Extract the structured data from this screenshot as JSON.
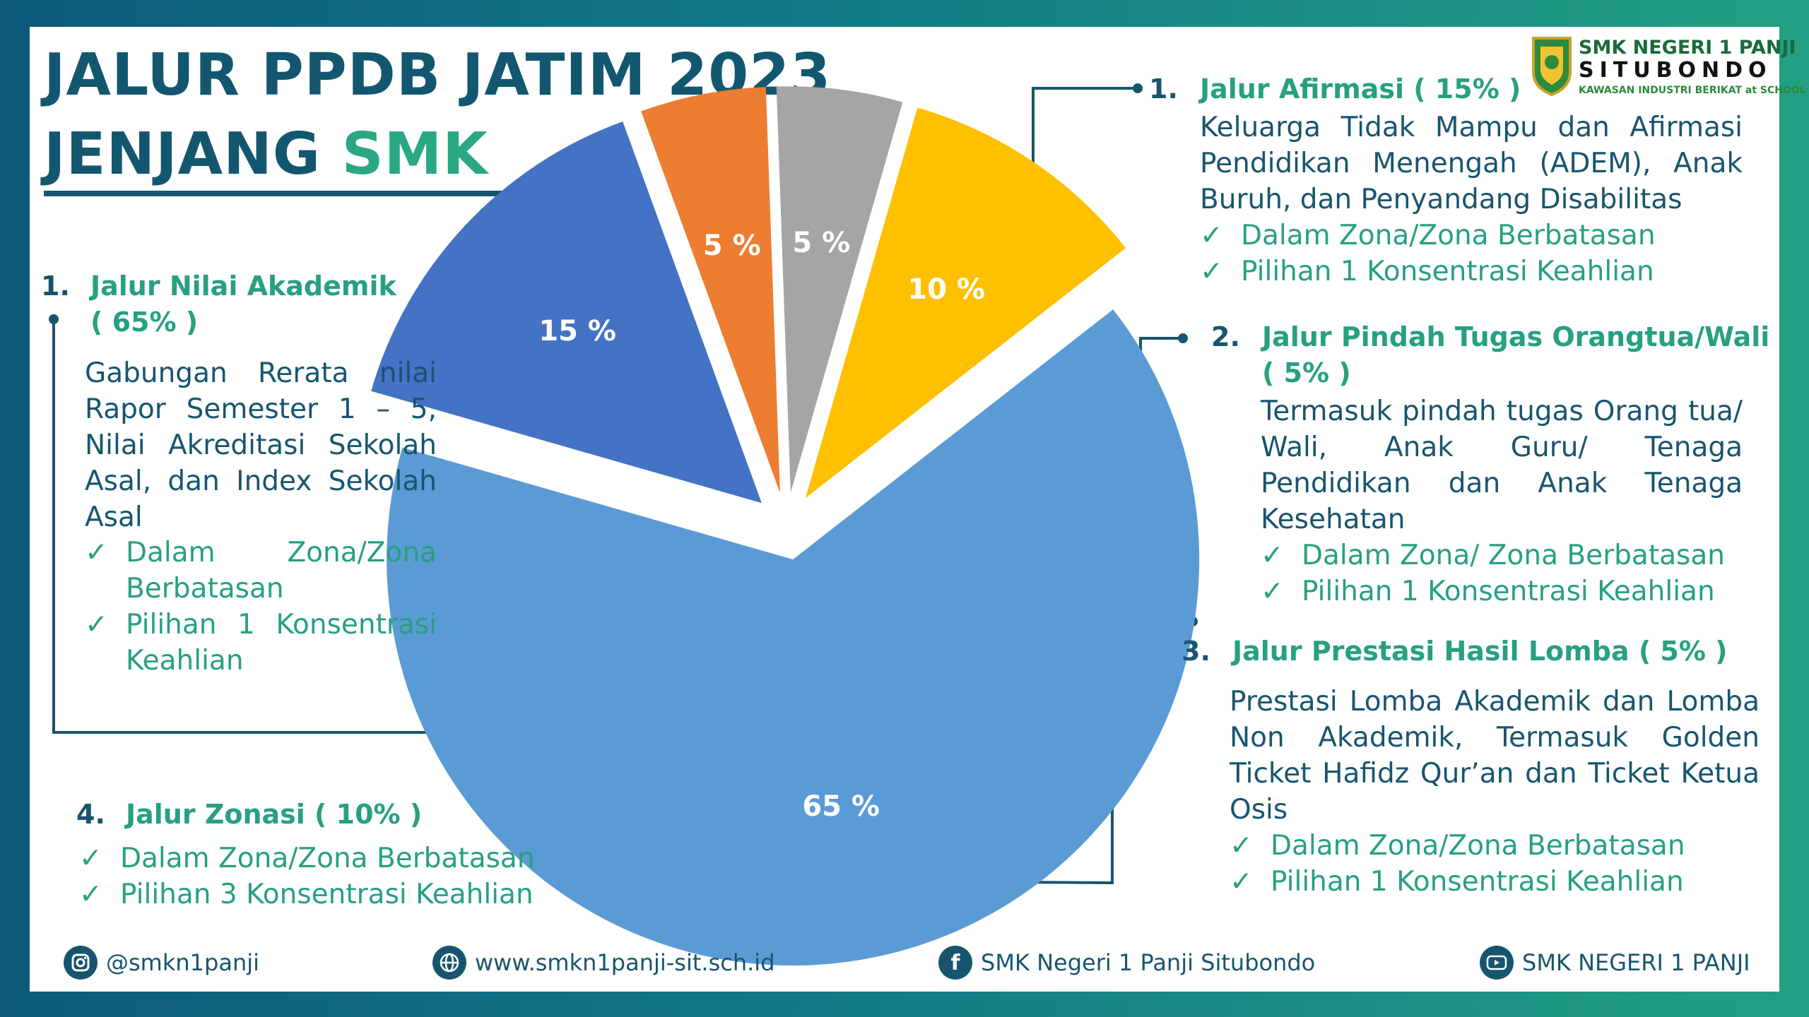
{
  "title": {
    "line1": "JALUR PPDB JATIM 2023",
    "line2_part1": "JENJANG ",
    "line2_part2": "SMK"
  },
  "logo": {
    "line1": "SMK NEGERI 1 PANJI",
    "line2": "SITUBONDO",
    "line3": "KAWASAN INDUSTRI BERIKAT at SCHOOL"
  },
  "sections": {
    "afirmasi": {
      "number": "1.",
      "heading": "Jalur Afirmasi ( 15% )",
      "description": "Keluarga Tidak Mampu dan Afirmasi Pendidikan Menengah (ADEM), Anak Buruh, dan Penyandang Disabilitas",
      "checks": [
        "Dalam Zona/Zona Berbatasan",
        "Pilihan 1 Konsentrasi Keahlian"
      ]
    },
    "pindah_tugas": {
      "number": "2.",
      "heading": "Jalur Pindah Tugas Orangtua/Wali",
      "heading2": "( 5% )",
      "description": "Termasuk pindah tugas Orang tua/ Wali, Anak Guru/ Tenaga Pendidikan dan Anak Tenaga Kesehatan",
      "checks": [
        "Dalam Zona/ Zona Berbatasan",
        "Pilihan 1 Konsentrasi Keahlian"
      ]
    },
    "prestasi": {
      "number": "3.",
      "heading": "Jalur Prestasi Hasil Lomba ( 5% )",
      "description": "Prestasi Lomba Akademik dan Lomba Non Akademik, Termasuk Golden Ticket Hafidz Qur’an dan Ticket Ketua Osis",
      "checks": [
        "Dalam Zona/Zona Berbatasan",
        "Pilihan 1 Konsentrasi Keahlian"
      ]
    },
    "zonasi": {
      "number": "4.",
      "heading": "Jalur Zonasi ( 10% )",
      "checks": [
        "Dalam Zona/Zona Berbatasan",
        "Pilihan 3 Konsentrasi Keahlian"
      ]
    },
    "nilai_akademik": {
      "number": "1.",
      "heading": "Jalur Nilai Akademik",
      "heading2": "( 65% )",
      "description": "Gabungan Rerata nilai Rapor Semester 1 – 5, Nilai Akreditasi Sekolah Asal, dan Index Sekolah Asal",
      "checks": [
        "Dalam Zona/Zona Berbatasan",
        "Pilihan 1 Konsentrasi Keahlian"
      ]
    }
  },
  "chart_data": {
    "type": "pie",
    "slices": [
      {
        "label": "15 %",
        "value": 15,
        "color": "#4472c4"
      },
      {
        "label": "5 %",
        "value": 5,
        "color": "#ed7d31"
      },
      {
        "label": "5 %",
        "value": 5,
        "color": "#a5a5a5"
      },
      {
        "label": "10 %",
        "value": 10,
        "color": "#ffc000"
      },
      {
        "label": "65 %",
        "value": 65,
        "color": "#5b9bd5"
      }
    ]
  },
  "footer": {
    "instagram": "@smkn1panji",
    "website": "www.smkn1panji-sit.sch.id",
    "facebook": "SMK Negeri 1 Panji Situbondo",
    "youtube": "SMK NEGERI 1 PANJI"
  },
  "colors": {
    "navy": "#17556f",
    "green": "#27a080"
  }
}
